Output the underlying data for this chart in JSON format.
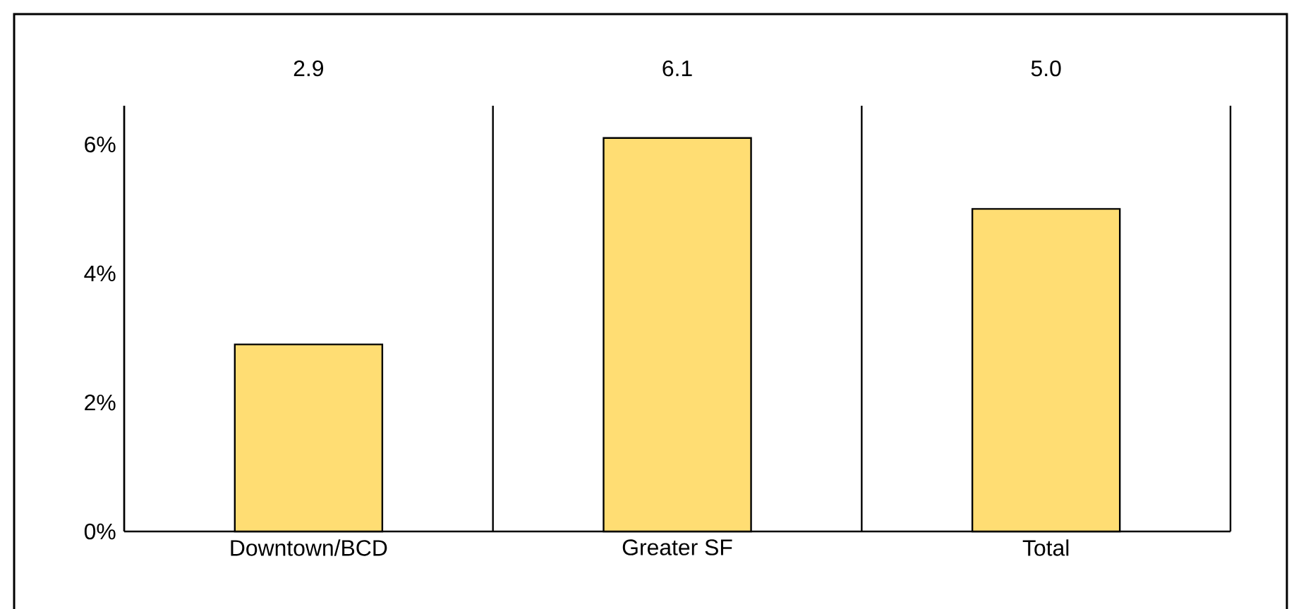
{
  "chart_data": {
    "type": "bar",
    "categories": [
      "Downtown/BCD",
      "Greater SF",
      "Total"
    ],
    "values": [
      2.9,
      6.1,
      5.0
    ],
    "value_labels": [
      "2.9",
      "6.1",
      "5.0"
    ],
    "color": "#ffdd73",
    "ylim": [
      0,
      6.6
    ],
    "yticks": [
      {
        "value": 0,
        "label": "0%"
      },
      {
        "value": 2,
        "label": "2%"
      },
      {
        "value": 4,
        "label": "4%"
      },
      {
        "value": 6,
        "label": "6%"
      }
    ],
    "grid": "x"
  }
}
